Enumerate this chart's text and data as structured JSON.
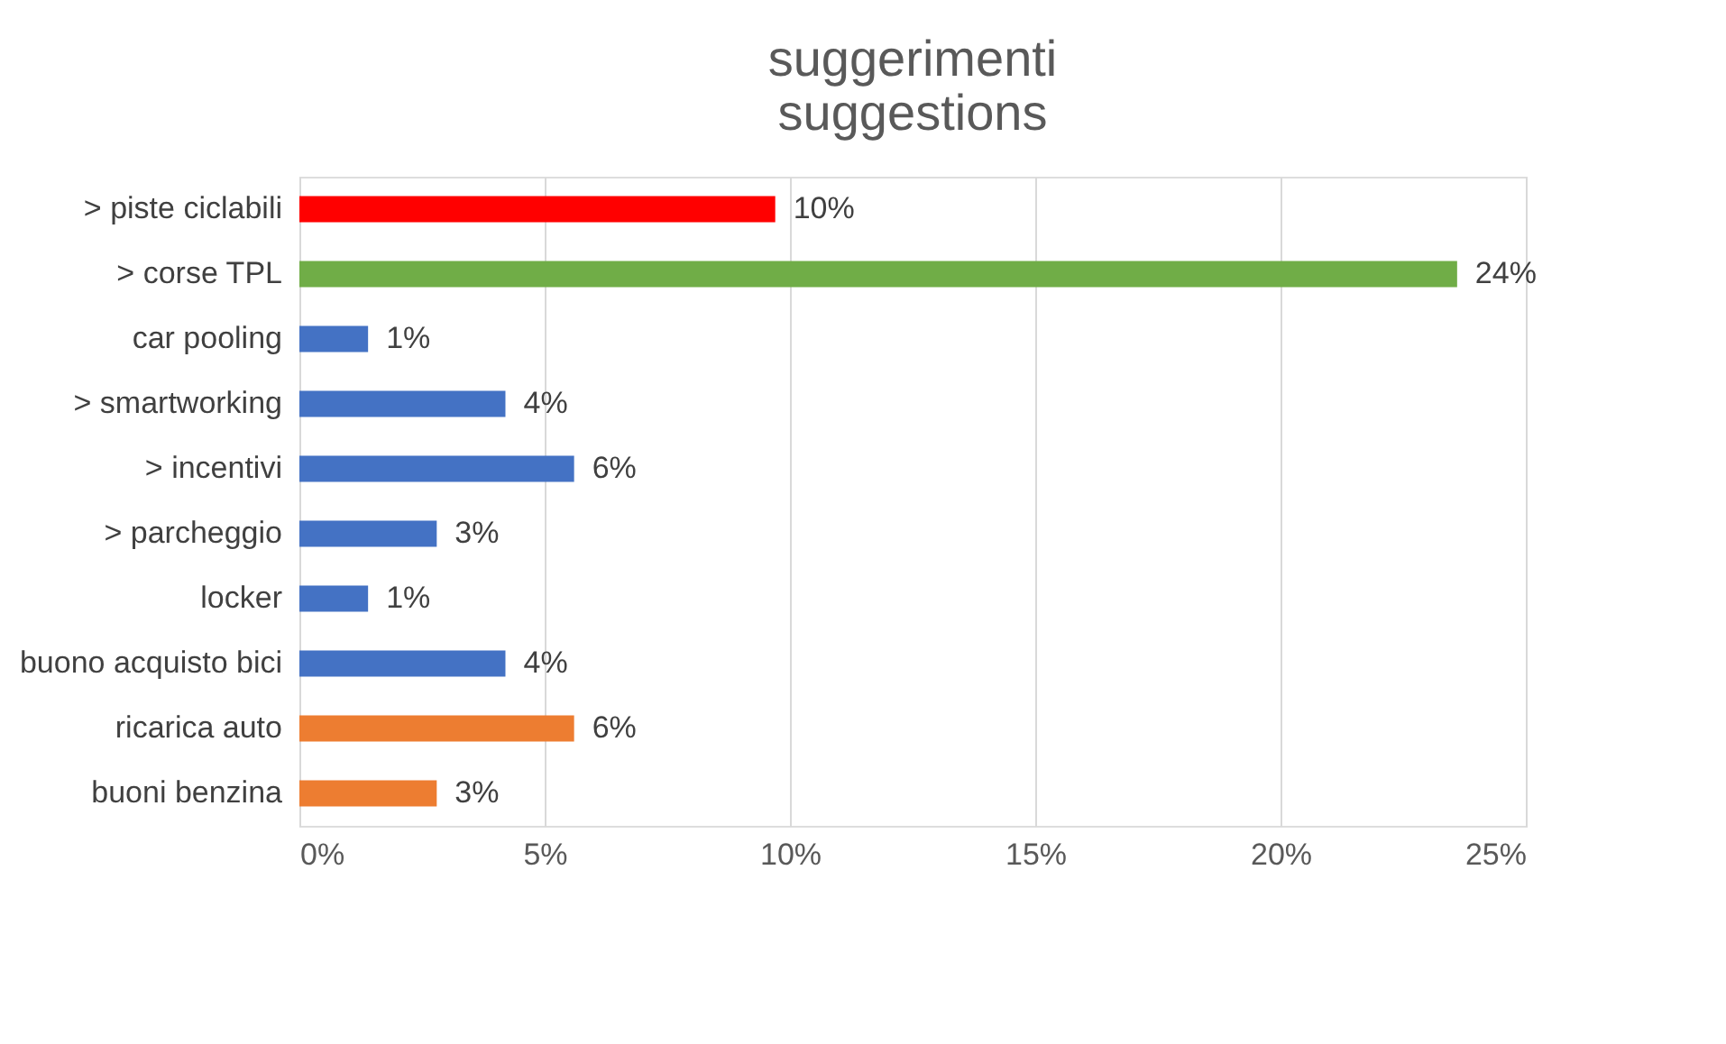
{
  "chart_data": {
    "type": "bar",
    "orientation": "horizontal",
    "title": "suggerimenti\nsuggestions",
    "categories": [
      "> piste ciclabili",
      "> corse TPL",
      "car pooling",
      "> smartworking",
      "> incentivi",
      "> parcheggio",
      "locker",
      "buono acquisto bici",
      "ricarica auto",
      "buoni benzina"
    ],
    "values": [
      9.7,
      23.6,
      1.4,
      4.2,
      5.6,
      2.8,
      1.4,
      4.2,
      5.6,
      2.8
    ],
    "value_labels": [
      "10%",
      "24%",
      "1%",
      "4%",
      "6%",
      "3%",
      "1%",
      "4%",
      "6%",
      "3%"
    ],
    "colors": [
      "#ff0000",
      "#70ad47",
      "#4472c4",
      "#4472c4",
      "#4472c4",
      "#4472c4",
      "#4472c4",
      "#4472c4",
      "#ed7d31",
      "#ed7d31"
    ],
    "xlim": [
      0,
      25
    ],
    "xticks": [
      {
        "value": 0,
        "label": "0%"
      },
      {
        "value": 5,
        "label": "5%"
      },
      {
        "value": 10,
        "label": "10%"
      },
      {
        "value": 15,
        "label": "15%"
      },
      {
        "value": 20,
        "label": "20%"
      },
      {
        "value": 25,
        "label": "25%"
      }
    ],
    "grid": "x",
    "legend": false
  }
}
